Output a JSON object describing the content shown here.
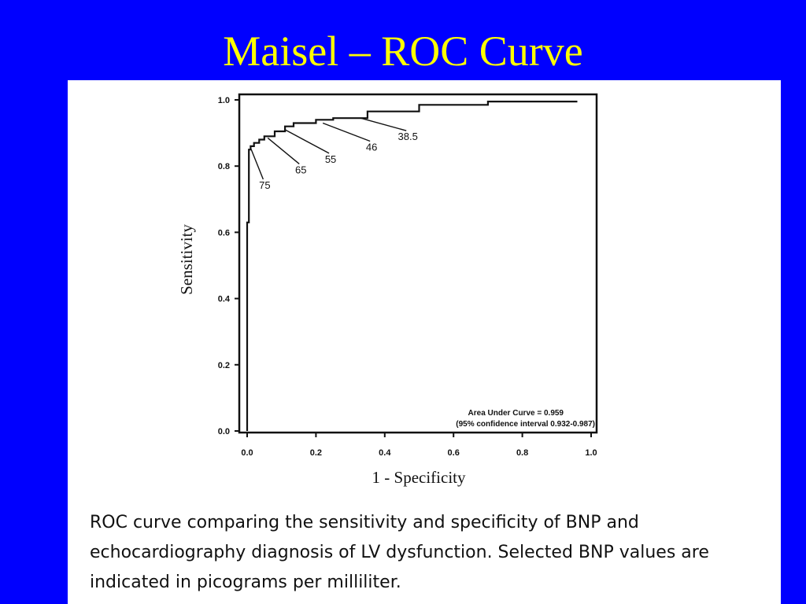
{
  "slide": {
    "title": "Maisel – ROC Curve",
    "caption": "ROC curve comparing the sensitivity and specificity of BNP and echocardiography diagnosis of LV dysfunction. Selected BNP values are indicated in picograms per milliliter.",
    "background_color": "#0000ff",
    "title_color": "#ffff00"
  },
  "chart_data": {
    "type": "line",
    "xlabel": "1 - Specificity",
    "ylabel": "Sensitivity",
    "xlim": [
      0,
      1
    ],
    "ylim": [
      0,
      1
    ],
    "x_ticks": [
      "0.0",
      "0.2",
      "0.4",
      "0.6",
      "0.8",
      "1.0"
    ],
    "y_ticks": [
      "0.0",
      "0.2",
      "0.4",
      "0.6",
      "0.8",
      "1.0"
    ],
    "grid": false,
    "series": [
      {
        "x": [
          0.0,
          0.0,
          0.005,
          0.005,
          0.01,
          0.01,
          0.02,
          0.02,
          0.035,
          0.035,
          0.05,
          0.05,
          0.08,
          0.08,
          0.11,
          0.11,
          0.135,
          0.135,
          0.2,
          0.2,
          0.25,
          0.25,
          0.35,
          0.35,
          0.5,
          0.5,
          0.7,
          0.7,
          0.96
        ],
        "y": [
          0.0,
          0.63,
          0.63,
          0.85,
          0.85,
          0.86,
          0.86,
          0.87,
          0.87,
          0.88,
          0.88,
          0.89,
          0.89,
          0.905,
          0.905,
          0.92,
          0.92,
          0.93,
          0.93,
          0.94,
          0.94,
          0.945,
          0.945,
          0.965,
          0.965,
          0.985,
          0.985,
          0.995,
          0.995
        ]
      }
    ],
    "point_labels": [
      {
        "text": "75",
        "x": 0.01,
        "y": 0.855
      },
      {
        "text": "65",
        "x": 0.06,
        "y": 0.885
      },
      {
        "text": "55",
        "x": 0.11,
        "y": 0.91
      },
      {
        "text": "46",
        "x": 0.22,
        "y": 0.93
      },
      {
        "text": "38.5",
        "x": 0.33,
        "y": 0.945
      }
    ],
    "annotation": {
      "line1": "Area Under Curve = 0.959",
      "line2": "(95% confidence interval 0.932-0.987)"
    }
  }
}
